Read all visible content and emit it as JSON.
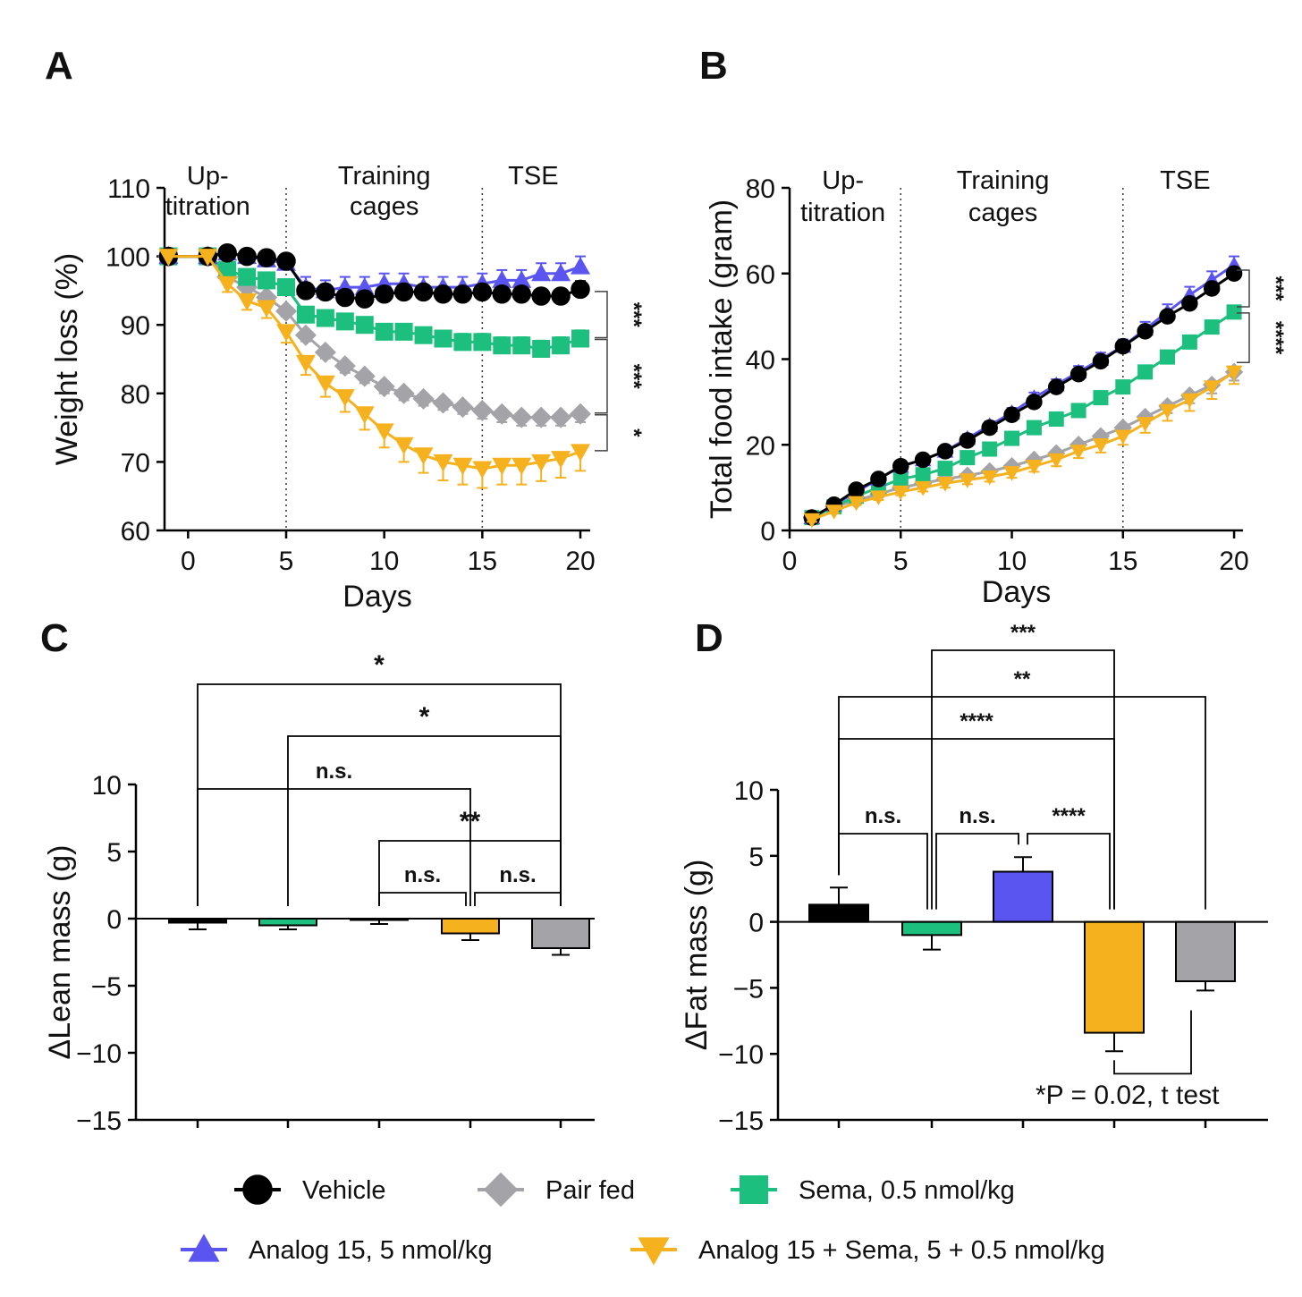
{
  "colors": {
    "vehicle": "#000000",
    "pair_fed": "#a3a3a8",
    "sema": "#1cbf7d",
    "analog15": "#5a55f0",
    "combo": "#f6b11f"
  },
  "chart_data": [
    {
      "id": "A",
      "panel_label": "A",
      "type": "line",
      "xlabel": "Days",
      "ylabel": "Weight loss (%)",
      "xlim": [
        -1.2,
        20.5
      ],
      "ylim": [
        60,
        110
      ],
      "xticks": [
        "0",
        "5",
        "10",
        "15",
        "20"
      ],
      "yticks": [
        "60",
        "70",
        "80",
        "90",
        "100",
        "110"
      ],
      "dividers": [
        5,
        15
      ],
      "regions": [
        {
          "lines": [
            "Up-",
            "titration"
          ],
          "x": 1
        },
        {
          "lines": [
            "Training",
            "cages"
          ],
          "x": 10
        },
        {
          "lines": [
            "TSE"
          ],
          "x": 17.6
        }
      ],
      "series": [
        {
          "name": "Pair fed",
          "key": "pair_fed",
          "marker": "diamond",
          "x": [
            -1,
            1,
            2,
            3,
            4,
            5,
            6,
            7,
            8,
            9,
            10,
            11,
            12,
            13,
            14,
            15,
            16,
            17,
            18,
            19,
            20
          ],
          "y": [
            100,
            100,
            97,
            95.5,
            94,
            92,
            88.5,
            86,
            84,
            82.5,
            81,
            80,
            79.2,
            78.6,
            78,
            77.5,
            77,
            76.5,
            76.5,
            76.5,
            77
          ],
          "err": [
            0,
            0,
            0.8,
            0.8,
            0.8,
            0.8,
            0.9,
            0.9,
            1,
            1,
            1,
            1,
            1,
            1,
            1,
            1.2,
            1.2,
            1.2,
            1.2,
            1.2,
            1.2
          ]
        },
        {
          "name": "Sema, 0.5 nmol/kg",
          "key": "sema",
          "marker": "square",
          "x": [
            -1,
            1,
            2,
            3,
            4,
            5,
            6,
            7,
            8,
            9,
            10,
            11,
            12,
            13,
            14,
            15,
            16,
            17,
            18,
            19,
            20
          ],
          "y": [
            100,
            100,
            98,
            97,
            96.5,
            95.5,
            91.5,
            91,
            90.5,
            90,
            89,
            89,
            88.5,
            88,
            87.5,
            87.5,
            87,
            87,
            86.5,
            87,
            88
          ],
          "err": [
            0,
            0,
            0.8,
            0.8,
            0.8,
            0.8,
            1,
            1,
            1,
            1,
            1,
            1,
            1,
            1,
            1.2,
            1.2,
            1.2,
            1.2,
            1.2,
            1.2,
            1.2
          ]
        },
        {
          "name": "Analog 15, 5 nmol/kg",
          "key": "analog15",
          "marker": "triangle-up",
          "x": [
            -1,
            1,
            2,
            3,
            4,
            5,
            6,
            7,
            8,
            9,
            10,
            11,
            12,
            13,
            14,
            15,
            16,
            17,
            18,
            19,
            20
          ],
          "y": [
            100,
            100,
            100.5,
            100,
            99.5,
            99,
            95.5,
            95,
            95.5,
            95.5,
            96,
            96,
            95.5,
            95.5,
            95.5,
            96,
            96.5,
            96.5,
            97.5,
            97.5,
            98.5
          ],
          "err": [
            0,
            0,
            0.8,
            0.8,
            0.8,
            0.8,
            1.5,
            1.5,
            1.5,
            1.5,
            1.5,
            1.5,
            1.5,
            1.5,
            1.5,
            1.5,
            1.5,
            1.5,
            1.5,
            1.5,
            1.5
          ]
        },
        {
          "name": "Vehicle",
          "key": "vehicle",
          "marker": "circle",
          "x": [
            -1,
            1,
            2,
            3,
            4,
            5,
            6,
            7,
            8,
            9,
            10,
            11,
            12,
            13,
            14,
            15,
            16,
            17,
            18,
            19,
            20
          ],
          "y": [
            100,
            100,
            100.5,
            100,
            99.8,
            99.3,
            95,
            94.8,
            94,
            93.8,
            94.5,
            94.8,
            94.8,
            94.5,
            94.5,
            94.8,
            94.5,
            94.5,
            94.2,
            94.2,
            95.2
          ],
          "err": [
            0,
            0,
            0.5,
            0.5,
            0.5,
            0.5,
            1,
            1,
            1,
            1,
            1,
            1,
            1,
            1,
            1,
            1,
            1,
            1,
            1,
            1,
            1.2
          ]
        },
        {
          "name": "Analog 15 + Sema, 5 + 0.5 nmol/kg",
          "key": "combo",
          "marker": "triangle-down",
          "x": [
            -1,
            1,
            2,
            3,
            4,
            5,
            6,
            7,
            8,
            9,
            10,
            11,
            12,
            13,
            14,
            15,
            16,
            17,
            18,
            19,
            20
          ],
          "y": [
            100,
            100,
            96,
            93.5,
            92.5,
            89,
            84.5,
            81.5,
            79.5,
            77,
            74.5,
            72.5,
            71,
            70,
            69.5,
            69,
            69.5,
            69.5,
            70,
            70.5,
            71.5
          ],
          "err": [
            0,
            0,
            1.2,
            1.3,
            1.5,
            1.6,
            1.8,
            2,
            2.2,
            2.3,
            2.4,
            2.5,
            2.6,
            2.7,
            2.8,
            2.8,
            2.8,
            2.8,
            2.8,
            2.8,
            2.8
          ]
        }
      ],
      "brackets": [
        {
          "y1": 95,
          "y2": 88,
          "label": "***"
        },
        {
          "y1": 88,
          "y2": 77,
          "label": "***"
        },
        {
          "y1": 77,
          "y2": 71.5,
          "label": "*"
        }
      ]
    },
    {
      "id": "B",
      "panel_label": "B",
      "type": "line",
      "xlabel": "Days",
      "ylabel": "Total food intake (gram)",
      "xlim": [
        0,
        20.4
      ],
      "ylim": [
        0,
        80
      ],
      "xticks": [
        "0",
        "5",
        "10",
        "15",
        "20"
      ],
      "yticks": [
        "0",
        "20",
        "40",
        "60",
        "80"
      ],
      "dividers": [
        5,
        15
      ],
      "regions": [
        {
          "lines": [
            "Up-",
            "titration"
          ],
          "x": 2.4
        },
        {
          "lines": [
            "Training",
            "cages"
          ],
          "x": 9.6
        },
        {
          "lines": [
            "TSE"
          ],
          "x": 17.8
        }
      ],
      "series": [
        {
          "name": "Pair fed",
          "key": "pair_fed",
          "marker": "diamond",
          "x": [
            1,
            2,
            3,
            4,
            5,
            6,
            7,
            8,
            9,
            10,
            11,
            12,
            13,
            14,
            15,
            16,
            17,
            18,
            19,
            20
          ],
          "y": [
            3,
            5.5,
            7,
            8.5,
            10,
            11,
            12,
            12.8,
            13.8,
            15,
            16.5,
            18,
            20,
            22,
            24,
            26.5,
            29,
            31.5,
            34,
            37
          ],
          "err": [
            0.5,
            0.5,
            0.5,
            0.6,
            0.6,
            0.7,
            0.7,
            0.8,
            0.8,
            0.9,
            1,
            1,
            1,
            1.2,
            1.3,
            1.5,
            1.6,
            1.8,
            2,
            2
          ]
        },
        {
          "name": "Sema, 0.5 nmol/kg",
          "key": "sema",
          "marker": "square",
          "x": [
            1,
            2,
            3,
            4,
            5,
            6,
            7,
            8,
            9,
            10,
            11,
            12,
            13,
            14,
            15,
            16,
            17,
            18,
            19,
            20
          ],
          "y": [
            3,
            5.5,
            8,
            10,
            12,
            13,
            14.5,
            17,
            19,
            21.5,
            24,
            26,
            28,
            31,
            33.5,
            37,
            40.5,
            44,
            47.5,
            51
          ],
          "err": [
            0.5,
            0.5,
            0.6,
            0.6,
            0.7,
            0.7,
            0.8,
            0.8,
            0.9,
            0.9,
            1,
            1,
            1,
            1.1,
            1.2,
            1.2,
            1.3,
            1.4,
            1.5,
            1.5
          ]
        },
        {
          "name": "Analog 15, 5 nmol/kg",
          "key": "analog15",
          "marker": "triangle-up",
          "x": [
            1,
            2,
            3,
            4,
            5,
            6,
            7,
            8,
            9,
            10,
            11,
            12,
            13,
            14,
            15,
            16,
            17,
            18,
            19,
            20
          ],
          "y": [
            3,
            6,
            9,
            12,
            15,
            16.5,
            18.5,
            21.5,
            24.5,
            27.5,
            31,
            34,
            37,
            40,
            43,
            47,
            51,
            55,
            58.5,
            62
          ],
          "err": [
            0.5,
            0.5,
            0.6,
            0.7,
            0.8,
            0.8,
            0.9,
            1,
            1,
            1.1,
            1.2,
            1.3,
            1.4,
            1.5,
            1.6,
            1.7,
            1.8,
            1.9,
            2,
            2
          ]
        },
        {
          "name": "Vehicle",
          "key": "vehicle",
          "marker": "circle",
          "x": [
            1,
            2,
            3,
            4,
            5,
            6,
            7,
            8,
            9,
            10,
            11,
            12,
            13,
            14,
            15,
            16,
            17,
            18,
            19,
            20
          ],
          "y": [
            3,
            6,
            9.5,
            12,
            15,
            16.5,
            18.5,
            21,
            24,
            27,
            30,
            33.5,
            36.5,
            39.5,
            43,
            46.5,
            50,
            53,
            56.5,
            60
          ],
          "err": [
            0.4,
            0.4,
            0.5,
            0.5,
            0.6,
            0.6,
            0.7,
            0.7,
            0.8,
            0.8,
            0.9,
            0.9,
            1,
            1,
            1,
            1.1,
            1.1,
            1.2,
            1.2,
            1.2
          ]
        },
        {
          "name": "Analog 15 + Sema, 5 + 0.5 nmol/kg",
          "key": "combo",
          "marker": "triangle-down",
          "x": [
            1,
            2,
            3,
            4,
            5,
            6,
            7,
            8,
            9,
            10,
            11,
            12,
            13,
            14,
            15,
            16,
            17,
            18,
            19,
            20
          ],
          "y": [
            2.5,
            4.5,
            6.5,
            7.8,
            9,
            10,
            11,
            11.8,
            12.5,
            13.5,
            15,
            16.5,
            18.5,
            20,
            22,
            25,
            28,
            30.5,
            33.5,
            37
          ],
          "err": [
            0.5,
            0.5,
            0.6,
            0.7,
            0.8,
            0.9,
            1,
            1,
            1.1,
            1.2,
            1.3,
            1.5,
            1.6,
            1.8,
            2,
            2.2,
            2.4,
            2.6,
            2.8,
            2.8
          ]
        }
      ],
      "brackets": [
        {
          "y1": 61,
          "y2": 52,
          "label": "***"
        },
        {
          "y1": 51,
          "y2": 39,
          "label": "****"
        }
      ]
    },
    {
      "id": "C",
      "panel_label": "C",
      "type": "bar",
      "ylabel": "ΔLean mass  (g)",
      "ylim": [
        -15,
        10
      ],
      "yticks": [
        "10",
        "5",
        "0",
        "−5",
        "−10",
        "−15"
      ],
      "categories": [
        "Vehicle",
        "Sema, 0.5 nmol/kg",
        "Analog 15, 5 nmol/kg",
        "Analog 15 + Sema, 5 + 0.5 nmol/kg",
        "Pair fed"
      ],
      "keys": [
        "vehicle",
        "sema",
        "analog15",
        "combo",
        "pair_fed"
      ],
      "values": [
        -0.3,
        -0.5,
        -0.1,
        -1.1,
        -2.2
      ],
      "err": [
        0.5,
        0.3,
        0.3,
        0.5,
        0.5
      ],
      "brackets": [
        {
          "a": 0,
          "b": 4,
          "label": "*",
          "level": 0
        },
        {
          "a": 1,
          "b": 4,
          "label": "*",
          "level": 1
        },
        {
          "a": 0,
          "b": 3,
          "label": "n.s.",
          "level": 2
        },
        {
          "a": 2,
          "b": 4,
          "label": "**",
          "level": 3
        },
        {
          "a": 2,
          "b": 3,
          "label": "n.s.",
          "level": 4
        },
        {
          "a": 3,
          "b": 4,
          "label": "n.s.",
          "level": 4
        }
      ]
    },
    {
      "id": "D",
      "panel_label": "D",
      "type": "bar",
      "ylabel": "ΔFat mass  (g)",
      "ylim": [
        -15,
        10
      ],
      "yticks": [
        "10",
        "5",
        "0",
        "−5",
        "−10",
        "−15"
      ],
      "categories": [
        "Vehicle",
        "Sema, 0.5 nmol/kg",
        "Analog 15, 5 nmol/kg",
        "Analog 15 + Sema, 5 + 0.5 nmol/kg",
        "Pair fed"
      ],
      "keys": [
        "vehicle",
        "sema",
        "analog15",
        "combo",
        "pair_fed"
      ],
      "values": [
        1.3,
        -1.0,
        3.8,
        -8.4,
        -4.5
      ],
      "err": [
        1.3,
        1.1,
        1.1,
        1.4,
        0.7
      ],
      "brackets": [
        {
          "a": 1,
          "b": 3,
          "label": "***",
          "level": 0
        },
        {
          "a": 0,
          "b": 4,
          "label": "**",
          "level": 1
        },
        {
          "a": 0,
          "b": 3,
          "label": "****",
          "level": 2
        },
        {
          "a": 0,
          "b": 1,
          "label": "n.s.",
          "level": 3
        },
        {
          "a": 1,
          "b": 2,
          "label": "n.s.",
          "level": 3
        },
        {
          "a": 2,
          "b": 3,
          "label": "****",
          "level": 3
        }
      ],
      "annotation": "*P = 0.02, t test"
    }
  ],
  "legend": [
    {
      "key": "vehicle",
      "marker": "circle",
      "label": "Vehicle"
    },
    {
      "key": "pair_fed",
      "marker": "diamond",
      "label": "Pair fed"
    },
    {
      "key": "sema",
      "marker": "square",
      "label": "Sema, 0.5 nmol/kg"
    },
    {
      "key": "analog15",
      "marker": "triangle-up",
      "label": "Analog 15, 5 nmol/kg"
    },
    {
      "key": "combo",
      "marker": "triangle-down",
      "label": "Analog 15 + Sema, 5 + 0.5 nmol/kg"
    }
  ]
}
